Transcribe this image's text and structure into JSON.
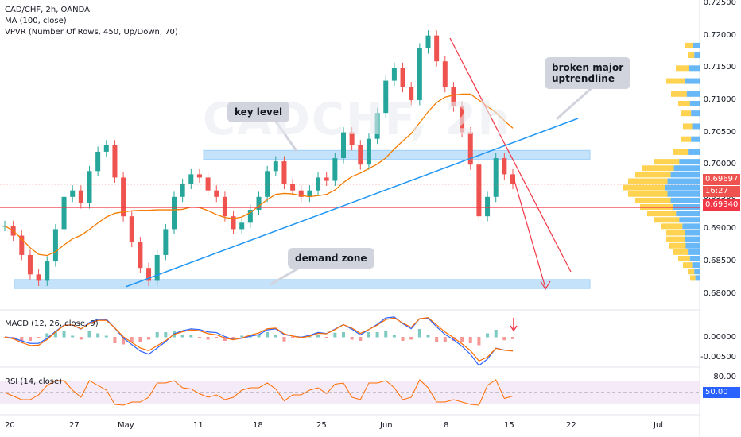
{
  "legend": {
    "symbol": "CAD/CHF, 2h, OANDA",
    "ma": "MA (100, close)",
    "vpvr": "VPVR (Number Of Rows, 450, Up/Down, 70)"
  },
  "watermark": "CADCHF, 2h",
  "annotations": {
    "key_level": "key level",
    "broken_uptrend_line1": "broken major",
    "broken_uptrend_line2": "uptrendline",
    "demand_zone": "demand zone"
  },
  "price_axis": [
    "0.72500",
    "0.72000",
    "0.71500",
    "0.71000",
    "0.70500",
    "0.70000",
    "0.69500",
    "0.69000",
    "0.68500",
    "0.68000"
  ],
  "price_tags": {
    "current": "0.69697",
    "countdown": "16:27",
    "level": "0.69340"
  },
  "macd": {
    "label": "MACD (12, 26, close, 9)",
    "axis": [
      "0.00000",
      "-0.00500"
    ]
  },
  "rsi": {
    "label": "RSI (14, close)",
    "axis_top": "80.00",
    "axis_mid": "50.00"
  },
  "date_axis": [
    "20",
    "27",
    "May",
    "11",
    "18",
    "25",
    "Jun",
    "8",
    "15",
    "22",
    "Jul"
  ],
  "colors": {
    "up": "#26a69a",
    "down": "#ef5350",
    "ma": "#f57c00",
    "trendline": "#2196f3",
    "level_line": "#f23645",
    "zone": "#bbdefb",
    "vpvr_up": "#42a5f5",
    "vpvr_down": "#ffc107",
    "rsi_band": "#f3e5f5"
  },
  "chart_data": {
    "type": "candlestick",
    "price_range": [
      0.6775,
      0.7255
    ],
    "key_level_zone": [
      0.7008,
      0.7022
    ],
    "demand_zone": [
      0.6808,
      0.6822
    ],
    "horizontal_level": 0.6934,
    "current_price": 0.69697,
    "close_series": [
      0.6905,
      0.689,
      0.686,
      0.683,
      0.682,
      0.685,
      0.69,
      0.695,
      0.696,
      0.694,
      0.699,
      0.702,
      0.703,
      0.698,
      0.692,
      0.688,
      0.684,
      0.682,
      0.686,
      0.69,
      0.695,
      0.697,
      0.6985,
      0.698,
      0.696,
      0.695,
      0.692,
      0.69,
      0.691,
      0.693,
      0.695,
      0.699,
      0.7005,
      0.697,
      0.696,
      0.695,
      0.696,
      0.698,
      0.6975,
      0.701,
      0.705,
      0.703,
      0.7,
      0.704,
      0.708,
      0.713,
      0.715,
      0.712,
      0.71,
      0.718,
      0.72,
      0.716,
      0.712,
      0.709,
      0.705,
      0.7,
      0.692,
      0.695,
      0.701,
      0.6985,
      0.697
    ]
  }
}
